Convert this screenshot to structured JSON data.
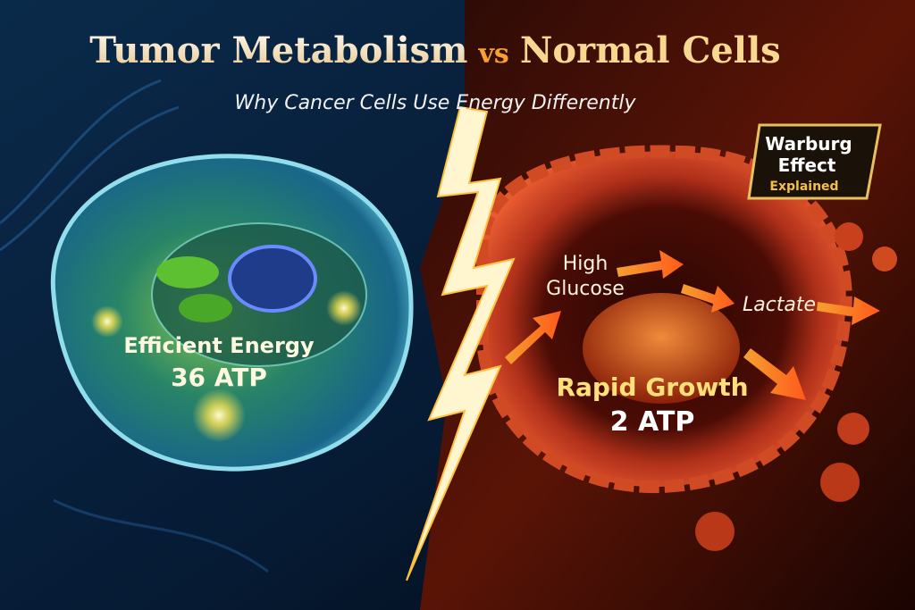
{
  "header": {
    "title": {
      "part1": "Tumor Metabolism",
      "connector": "vs",
      "part2": "Normal Cells"
    },
    "subtitle": "Why Cancer Cells Use Energy Differently"
  },
  "badge": {
    "lines": [
      "Warburg",
      "Effect",
      "Explained"
    ]
  },
  "normal_cell": {
    "label": "Efficient Energy",
    "atp": "36 ATP"
  },
  "tumor_cell": {
    "input": [
      "High",
      "Glucose"
    ],
    "output": "Lactate",
    "label": "Rapid Growth",
    "atp": "2 ATP"
  }
}
